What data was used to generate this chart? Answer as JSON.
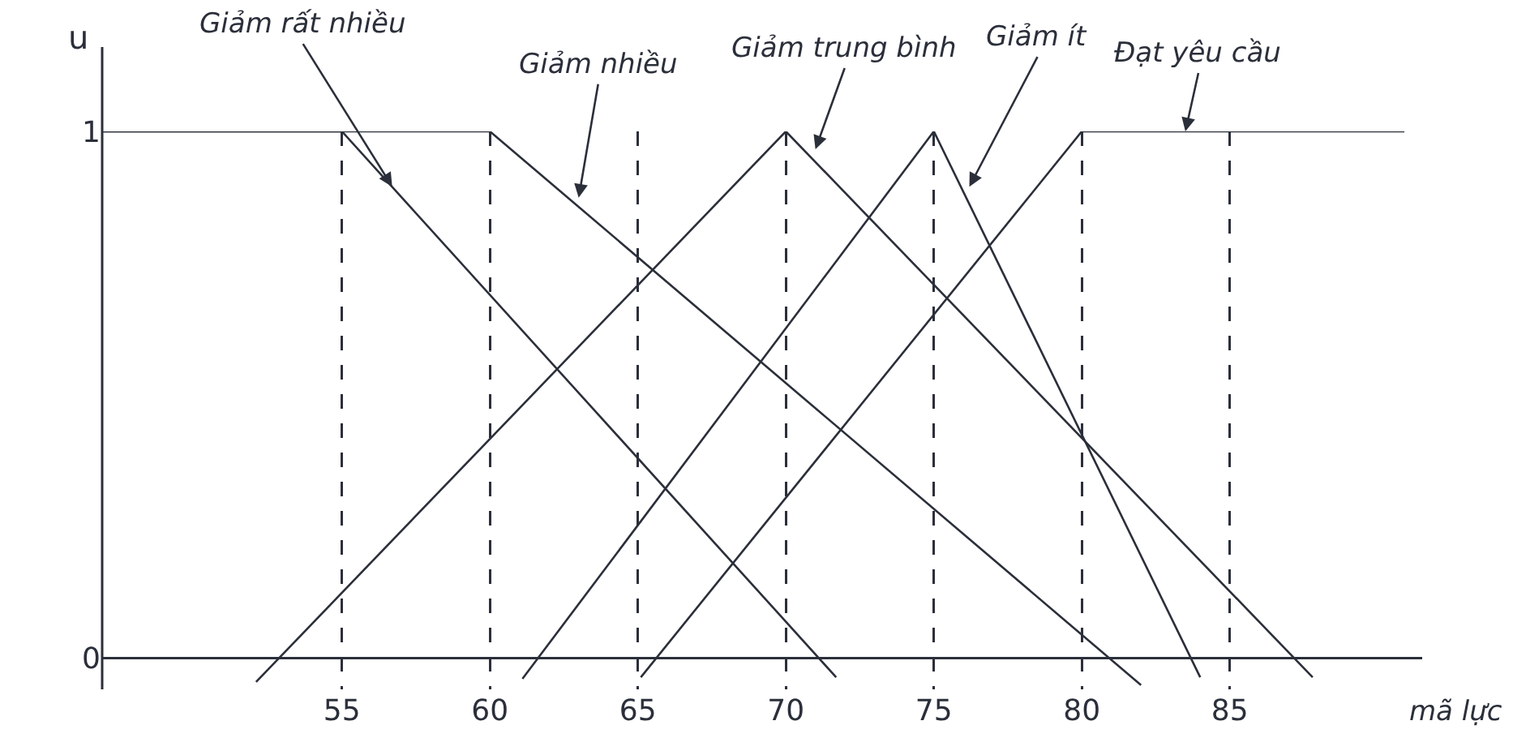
{
  "chart_data": {
    "type": "line",
    "xlabel": "mã lực",
    "ylabel": "u",
    "xlim": [
      46.9,
      91.5
    ],
    "ylim": [
      -0.06,
      1
    ],
    "xticks": [
      55,
      60,
      65,
      70,
      75,
      80,
      85
    ],
    "yticks": [
      0,
      1
    ],
    "grid": "x",
    "marker": "none",
    "line_style": "solid",
    "series": [
      {
        "color": "#2b2f3a",
        "x": [
          46.9,
          55,
          71.7
        ],
        "values": [
          1,
          1,
          -0.037
        ]
      },
      {
        "color": "#2b2f3a",
        "x": [
          46.9,
          60,
          82.0
        ],
        "values": [
          1,
          1,
          -0.052
        ]
      },
      {
        "color": "#2b2f3a",
        "x": [
          52.1,
          70,
          87.8
        ],
        "values": [
          -0.046,
          1,
          -0.037
        ]
      },
      {
        "color": "#2b2f3a",
        "x": [
          61.1,
          75,
          84.0
        ],
        "values": [
          -0.04,
          1,
          -0.037
        ]
      },
      {
        "color": "#2b2f3a",
        "x": [
          65.1,
          80,
          90.9
        ],
        "values": [
          -0.037,
          1,
          1
        ]
      }
    ],
    "annotations": [
      {
        "text": "Giảm rất nhiều",
        "x": 56.7,
        "y": 0.895
      },
      {
        "text": "Giảm nhiều",
        "x": 63.0,
        "y": 0.874
      },
      {
        "text": "Giảm trung bình",
        "x": 71.0,
        "y": 0.966
      },
      {
        "text": "Giảm ít",
        "x": 76.2,
        "y": 0.895
      },
      {
        "text": "Đạt yêu cầu",
        "x": 83.5,
        "y": 1.0
      }
    ]
  }
}
